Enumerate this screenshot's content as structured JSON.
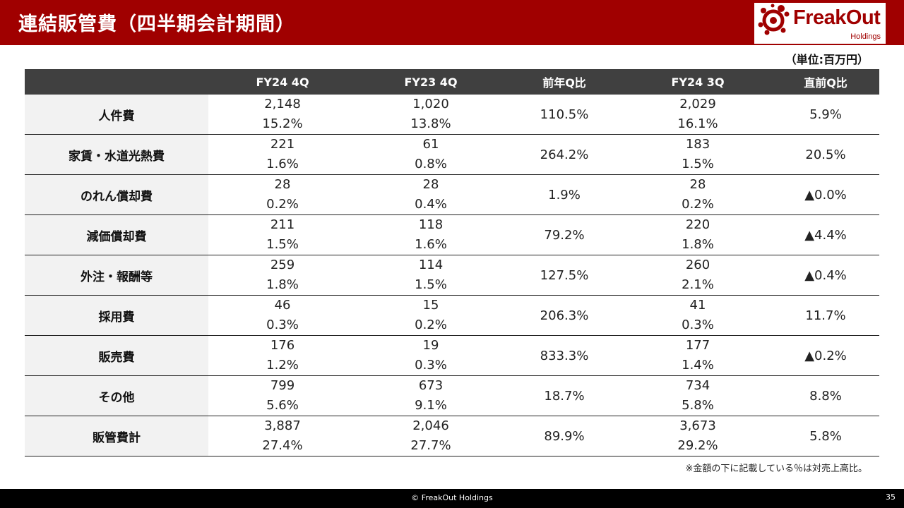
{
  "header": {
    "title": "連結販管費（四半期会計期間）",
    "brand": "FreakOut",
    "brand_sub": "Holdings",
    "bar_color": "#a00000"
  },
  "unit_label": "（単位:百万円）",
  "table": {
    "columns": [
      "",
      "FY24 4Q",
      "FY23 4Q",
      "前年Q比",
      "FY24 3Q",
      "直前Q比"
    ],
    "rows": [
      {
        "label": "人件費",
        "fy24_4q": [
          "2,148",
          "15.2%"
        ],
        "fy23_4q": [
          "1,020",
          "13.8%"
        ],
        "yoy": "110.5%",
        "fy24_3q": [
          "2,029",
          "16.1%"
        ],
        "qoq": "5.9%"
      },
      {
        "label": "家賃・水道光熱費",
        "fy24_4q": [
          "221",
          "1.6%"
        ],
        "fy23_4q": [
          "61",
          "0.8%"
        ],
        "yoy": "264.2%",
        "fy24_3q": [
          "183",
          "1.5%"
        ],
        "qoq": "20.5%"
      },
      {
        "label": "のれん償却費",
        "fy24_4q": [
          "28",
          "0.2%"
        ],
        "fy23_4q": [
          "28",
          "0.4%"
        ],
        "yoy": "1.9%",
        "fy24_3q": [
          "28",
          "0.2%"
        ],
        "qoq": "▲0.0%"
      },
      {
        "label": "減価償却費",
        "fy24_4q": [
          "211",
          "1.5%"
        ],
        "fy23_4q": [
          "118",
          "1.6%"
        ],
        "yoy": "79.2%",
        "fy24_3q": [
          "220",
          "1.8%"
        ],
        "qoq": "▲4.4%"
      },
      {
        "label": "外注・報酬等",
        "fy24_4q": [
          "259",
          "1.8%"
        ],
        "fy23_4q": [
          "114",
          "1.5%"
        ],
        "yoy": "127.5%",
        "fy24_3q": [
          "260",
          "2.1%"
        ],
        "qoq": "▲0.4%"
      },
      {
        "label": "採用費",
        "fy24_4q": [
          "46",
          "0.3%"
        ],
        "fy23_4q": [
          "15",
          "0.2%"
        ],
        "yoy": "206.3%",
        "fy24_3q": [
          "41",
          "0.3%"
        ],
        "qoq": "11.7%"
      },
      {
        "label": "販売費",
        "fy24_4q": [
          "176",
          "1.2%"
        ],
        "fy23_4q": [
          "19",
          "0.3%"
        ],
        "yoy": "833.3%",
        "fy24_3q": [
          "177",
          "1.4%"
        ],
        "qoq": "▲0.2%"
      },
      {
        "label": "その他",
        "fy24_4q": [
          "799",
          "5.6%"
        ],
        "fy23_4q": [
          "673",
          "9.1%"
        ],
        "yoy": "18.7%",
        "fy24_3q": [
          "734",
          "5.8%"
        ],
        "qoq": "8.8%"
      },
      {
        "label": "販管費計",
        "fy24_4q": [
          "3,887",
          "27.4%"
        ],
        "fy23_4q": [
          "2,046",
          "27.7%"
        ],
        "yoy": "89.9%",
        "fy24_3q": [
          "3,673",
          "29.2%"
        ],
        "qoq": "5.8%"
      }
    ]
  },
  "note": "※金額の下に記載している％は対売上高比。",
  "footer": {
    "copyright": "© FreakOut Holdings",
    "page_number": "35"
  }
}
